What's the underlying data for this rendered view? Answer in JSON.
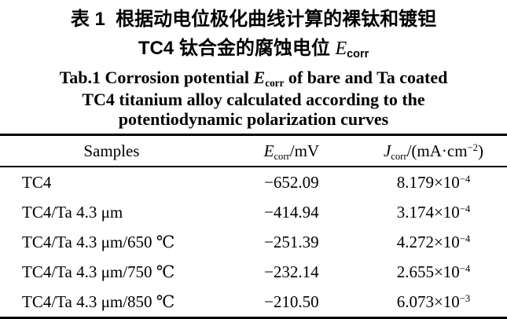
{
  "colors": {
    "background": "#ffffff",
    "text": "#000000",
    "rule": "#000000"
  },
  "caption_zh": {
    "line1": "表 1  根据动电位极化曲线计算的裸钛和镀钽",
    "line2_text": "TC4 钛合金的腐蚀电位 ",
    "line2_symbol": "E",
    "line2_symbol_sub": "corr"
  },
  "caption_en": {
    "line1_pre": "Tab.1 Corrosion potential ",
    "line1_symbol": "E",
    "line1_symbol_sub": "corr",
    "line1_post": " of bare and Ta coated",
    "line2": "TC4 titanium alloy calculated according to the",
    "line3": "potentiodynamic polarization curves"
  },
  "table": {
    "header": {
      "col1": "Samples",
      "col2_symbol": "E",
      "col2_sub": "corr",
      "col2_unit": "/mV",
      "col3_symbol": "J",
      "col3_sub": "corr",
      "col3_unit_pre": "/(mA·cm",
      "col3_unit_sup": "−2",
      "col3_unit_post": ")"
    },
    "rows": [
      {
        "sample": "TC4",
        "ecorr": "−652.09",
        "jcorr_mantissa": "8.179×10",
        "jcorr_exponent": "−4"
      },
      {
        "sample": "TC4/Ta 4.3 μm",
        "ecorr": "−414.94",
        "jcorr_mantissa": "3.174×10",
        "jcorr_exponent": "−4"
      },
      {
        "sample": "TC4/Ta 4.3 μm/650 ℃",
        "ecorr": "−251.39",
        "jcorr_mantissa": "4.272×10",
        "jcorr_exponent": "−4"
      },
      {
        "sample": "TC4/Ta 4.3 μm/750 ℃",
        "ecorr": "−232.14",
        "jcorr_mantissa": "2.655×10",
        "jcorr_exponent": "−4"
      },
      {
        "sample": "TC4/Ta 4.3 μm/850 ℃",
        "ecorr": "−210.50",
        "jcorr_mantissa": "6.073×10",
        "jcorr_exponent": "−3"
      }
    ]
  }
}
